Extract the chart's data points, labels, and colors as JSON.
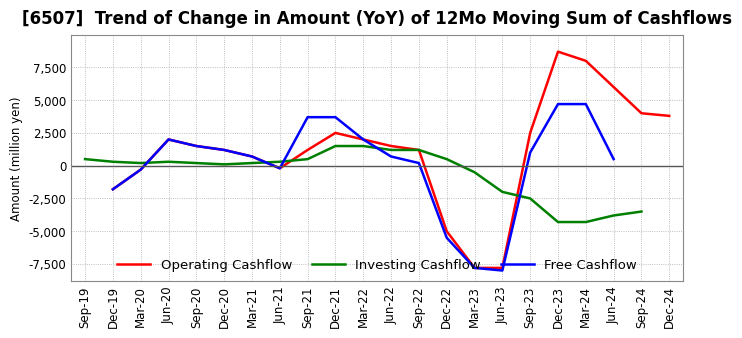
{
  "title": "[6507]  Trend of Change in Amount (YoY) of 12Mo Moving Sum of Cashflows",
  "ylabel": "Amount (million yen)",
  "ylim": [
    -8800,
    10000
  ],
  "yticks": [
    -7500,
    -5000,
    -2500,
    0,
    2500,
    5000,
    7500
  ],
  "x_labels": [
    "Sep-19",
    "Dec-19",
    "Mar-20",
    "Jun-20",
    "Sep-20",
    "Dec-20",
    "Mar-21",
    "Jun-21",
    "Sep-21",
    "Dec-21",
    "Mar-22",
    "Jun-22",
    "Sep-22",
    "Dec-22",
    "Mar-23",
    "Jun-23",
    "Sep-23",
    "Dec-23",
    "Mar-24",
    "Jun-24",
    "Sep-24",
    "Dec-24"
  ],
  "operating": [
    null,
    -1800,
    -300,
    2000,
    1500,
    1200,
    700,
    -200,
    1200,
    2500,
    2000,
    1500,
    1200,
    -5000,
    -7800,
    -7800,
    2500,
    8700,
    8000,
    6000,
    4000,
    3800
  ],
  "investing": [
    500,
    300,
    200,
    300,
    200,
    100,
    200,
    300,
    500,
    1500,
    1500,
    1200,
    1200,
    500,
    -500,
    -2000,
    -2500,
    -4300,
    -4300,
    -3800,
    -3500,
    null
  ],
  "free": [
    null,
    -1800,
    -300,
    2000,
    1500,
    1200,
    700,
    -200,
    3700,
    3700,
    2000,
    700,
    200,
    -5500,
    -7800,
    -8000,
    1000,
    4700,
    4700,
    500,
    null,
    null
  ],
  "operating_color": "#FF0000",
  "investing_color": "#008000",
  "free_color": "#0000FF",
  "background_color": "#FFFFFF",
  "plot_bg_color": "#FFFFFF",
  "grid_color": "#AAAAAA",
  "grid_style": "dotted",
  "title_fontsize": 12,
  "axis_fontsize": 8.5,
  "legend_fontsize": 9.5
}
